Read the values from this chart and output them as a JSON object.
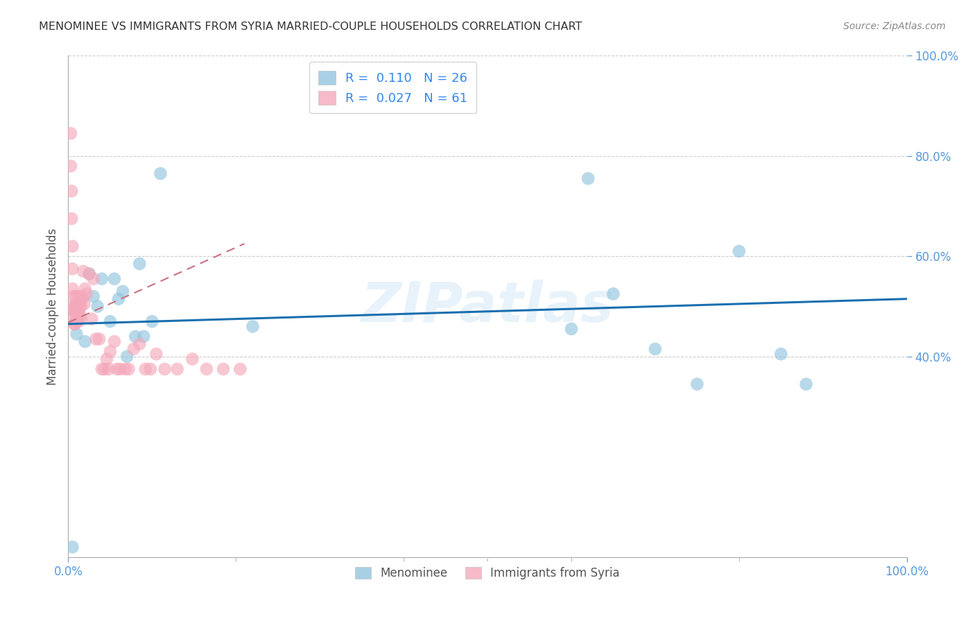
{
  "title": "MENOMINEE VS IMMIGRANTS FROM SYRIA MARRIED-COUPLE HOUSEHOLDS CORRELATION CHART",
  "source": "Source: ZipAtlas.com",
  "ylabel": "Married-couple Households",
  "legend_blue_r": "0.110",
  "legend_blue_n": "26",
  "legend_pink_r": "0.027",
  "legend_pink_n": "61",
  "legend_label_blue": "Menominee",
  "legend_label_pink": "Immigrants from Syria",
  "blue_color": "#92c5de",
  "pink_color": "#f4a9bb",
  "blue_line_color": "#1a6faf",
  "pink_line_color": "#c97080",
  "watermark": "ZIPatlas",
  "blue_points_x": [
    0.005,
    0.01,
    0.02,
    0.025,
    0.03,
    0.035,
    0.04,
    0.05,
    0.055,
    0.06,
    0.065,
    0.07,
    0.08,
    0.085,
    0.09,
    0.1,
    0.11,
    0.22,
    0.6,
    0.62,
    0.65,
    0.7,
    0.75,
    0.8,
    0.85,
    0.88
  ],
  "blue_points_y": [
    0.02,
    0.445,
    0.43,
    0.565,
    0.52,
    0.5,
    0.555,
    0.47,
    0.555,
    0.515,
    0.53,
    0.4,
    0.44,
    0.585,
    0.44,
    0.47,
    0.765,
    0.46,
    0.455,
    0.755,
    0.525,
    0.415,
    0.345,
    0.61,
    0.405,
    0.345
  ],
  "pink_points_x": [
    0.003,
    0.003,
    0.004,
    0.004,
    0.005,
    0.005,
    0.005,
    0.006,
    0.006,
    0.007,
    0.007,
    0.007,
    0.008,
    0.008,
    0.008,
    0.009,
    0.009,
    0.01,
    0.01,
    0.011,
    0.011,
    0.012,
    0.012,
    0.013,
    0.013,
    0.014,
    0.014,
    0.015,
    0.015,
    0.016,
    0.017,
    0.018,
    0.019,
    0.02,
    0.022,
    0.025,
    0.028,
    0.03,
    0.033,
    0.037,
    0.04,
    0.043,
    0.046,
    0.048,
    0.05,
    0.055,
    0.058,
    0.062,
    0.068,
    0.072,
    0.078,
    0.085,
    0.092,
    0.098,
    0.105,
    0.115,
    0.13,
    0.148,
    0.165,
    0.185,
    0.205
  ],
  "pink_points_y": [
    0.845,
    0.78,
    0.73,
    0.675,
    0.62,
    0.575,
    0.535,
    0.52,
    0.5,
    0.495,
    0.48,
    0.465,
    0.5,
    0.485,
    0.465,
    0.52,
    0.49,
    0.5,
    0.47,
    0.505,
    0.485,
    0.495,
    0.47,
    0.52,
    0.49,
    0.505,
    0.48,
    0.5,
    0.475,
    0.52,
    0.515,
    0.57,
    0.505,
    0.535,
    0.525,
    0.565,
    0.475,
    0.555,
    0.435,
    0.435,
    0.375,
    0.375,
    0.395,
    0.375,
    0.41,
    0.43,
    0.375,
    0.375,
    0.375,
    0.375,
    0.415,
    0.425,
    0.375,
    0.375,
    0.405,
    0.375,
    0.375,
    0.395,
    0.375,
    0.375,
    0.375
  ],
  "blue_trend_x": [
    0.0,
    1.0
  ],
  "blue_trend_y": [
    0.465,
    0.515
  ],
  "pink_trend_x": [
    0.0,
    0.21
  ],
  "pink_trend_y": [
    0.468,
    0.625
  ],
  "xlim": [
    0.0,
    1.0
  ],
  "ylim": [
    0.0,
    1.0
  ],
  "ytick_positions": [
    0.4,
    0.6,
    0.8,
    1.0
  ],
  "ytick_labels": [
    "40.0%",
    "60.0%",
    "80.0%",
    "100.0%"
  ],
  "xtick_positions": [
    0.0,
    1.0
  ],
  "xtick_labels": [
    "0.0%",
    "100.0%"
  ],
  "grid_yticks": [
    0.4,
    0.6,
    0.8,
    1.0
  ],
  "tick_color": "#5599dd",
  "title_color": "#333333",
  "source_color": "#888888",
  "legend_text_color": "#3388ee",
  "legend_n_color": "#2255cc"
}
